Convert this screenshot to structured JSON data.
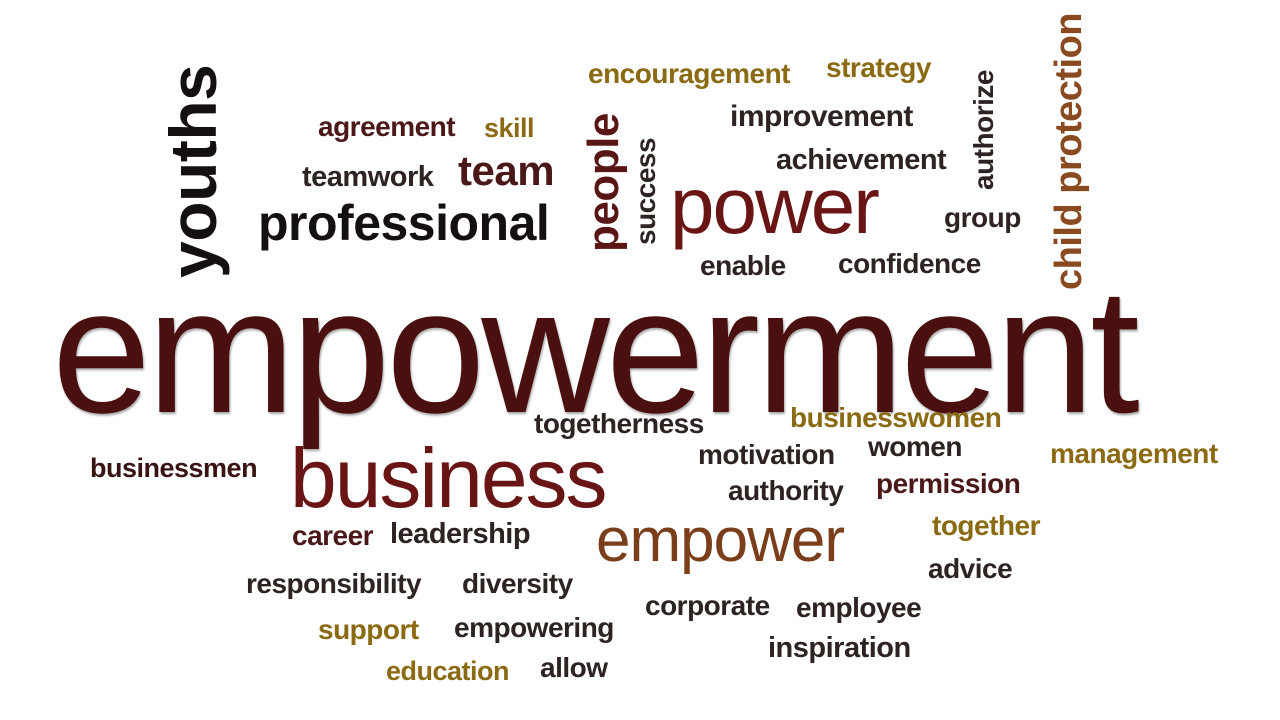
{
  "words": {
    "empowerment": "empowerment",
    "youths": "youths",
    "child_protection": "child protection",
    "encouragement": "encouragement",
    "strategy": "strategy",
    "authorize": "authorize",
    "agreement": "agreement",
    "skill": "skill",
    "improvement": "improvement",
    "people": "people",
    "success": "success",
    "teamwork": "teamwork",
    "team": "team",
    "achievement": "achievement",
    "professional": "professional",
    "power": "power",
    "group": "group",
    "enable": "enable",
    "confidence": "confidence",
    "togetherness": "togetherness",
    "businesswomen": "businesswomen",
    "businessmen": "businessmen",
    "business": "business",
    "motivation": "motivation",
    "women": "women",
    "management": "management",
    "authority": "authority",
    "permission": "permission",
    "career": "career",
    "leadership": "leadership",
    "empower": "empower",
    "together": "together",
    "advice": "advice",
    "responsibility": "responsibility",
    "diversity": "diversity",
    "corporate": "corporate",
    "employee": "employee",
    "support": "support",
    "empowering": "empowering",
    "inspiration": "inspiration",
    "education": "education",
    "allow": "allow"
  },
  "colors": {
    "dark": "#2b1a16",
    "maroon": "#5a1212",
    "brown": "#7a4a1e",
    "gold": "#8a6a12"
  }
}
